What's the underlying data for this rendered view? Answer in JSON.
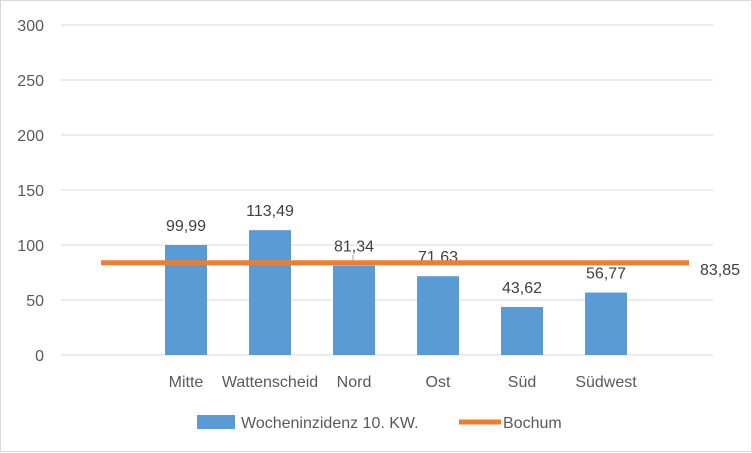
{
  "chart_data": {
    "type": "bar",
    "categories": [
      "Mitte",
      "Wattenscheid",
      "Nord",
      "Ost",
      "Süd",
      "Südwest"
    ],
    "series": [
      {
        "name": "Wocheninzidenz 10. KW.",
        "kind": "bar",
        "values": [
          99.99,
          113.49,
          81.34,
          71.63,
          43.62,
          56.77
        ],
        "value_labels": [
          "99,99",
          "113,49",
          "81,34",
          "71,63",
          "43,62",
          "56,77"
        ],
        "color": "#5b9bd5"
      },
      {
        "name": "Bochum",
        "kind": "line",
        "value": 83.85,
        "value_label": "83,85",
        "color": "#ed7d31"
      }
    ],
    "ylim": [
      0,
      300
    ],
    "yticks": [
      0,
      50,
      100,
      150,
      200,
      250,
      300
    ],
    "ytick_labels": [
      "0",
      "50",
      "100",
      "150",
      "200",
      "250",
      "300"
    ],
    "grid": true,
    "legend_position": "bottom",
    "title": "",
    "xlabel": "",
    "ylabel": ""
  }
}
